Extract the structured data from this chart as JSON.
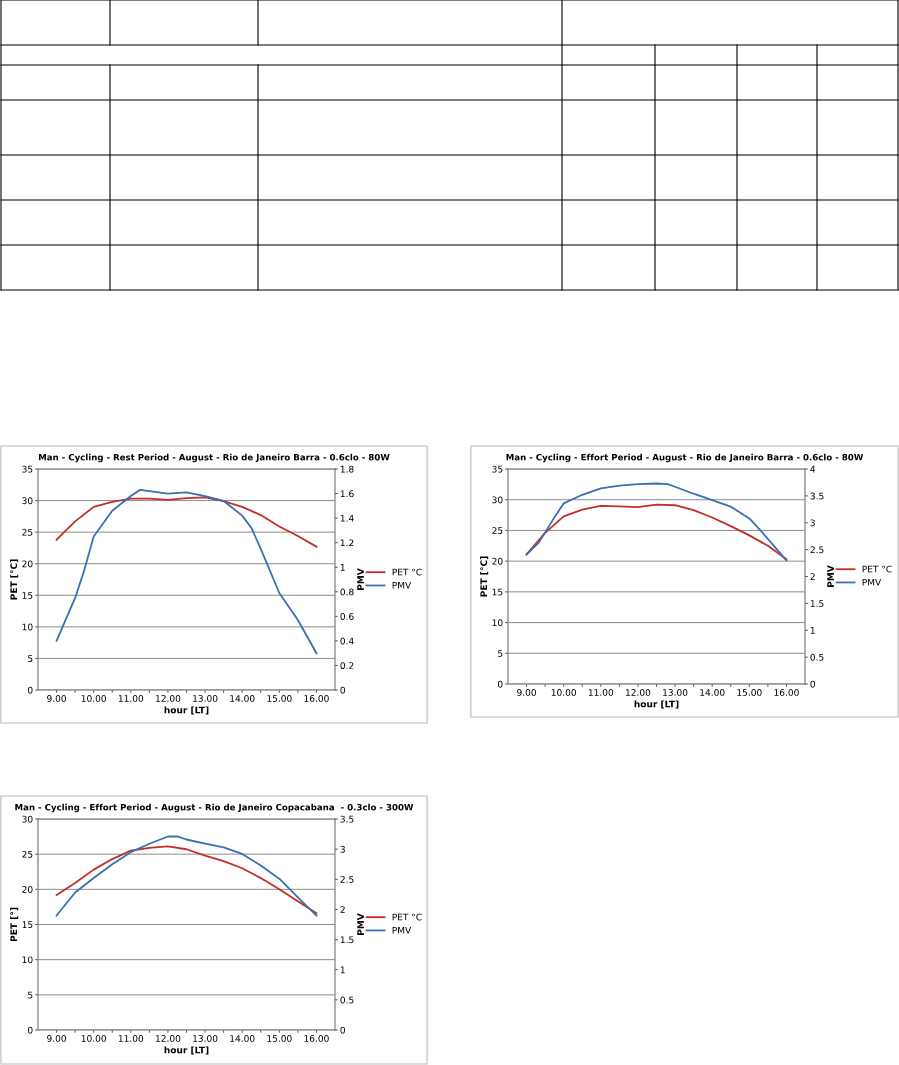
{
  "chart_data": [
    {
      "type": "line",
      "title": "Man - Cycling - Rest Period - August - Rio de Janeiro Barra - 0.6clo - 80W",
      "xlabel": "hour [LT]",
      "ylabel": "PET [°C]",
      "y2label": "PMV",
      "xlim": [
        8.5,
        16.5
      ],
      "xticks": [
        {
          "value": 9,
          "label": "9.00"
        },
        {
          "value": 9.5,
          "label": null
        },
        {
          "value": 10,
          "label": "10.00"
        },
        {
          "value": 10.5,
          "label": null
        },
        {
          "value": 11,
          "label": "11.00"
        },
        {
          "value": 11.5,
          "label": null
        },
        {
          "value": 12,
          "label": "12.00"
        },
        {
          "value": 12.5,
          "label": null
        },
        {
          "value": 13,
          "label": "13.00"
        },
        {
          "value": 13.5,
          "label": null
        },
        {
          "value": 14,
          "label": "14.00"
        },
        {
          "value": 14.5,
          "label": null
        },
        {
          "value": 15,
          "label": "15.00"
        },
        {
          "value": 15.5,
          "label": null
        },
        {
          "value": 16,
          "label": "16.00"
        }
      ],
      "ylim": [
        0,
        35
      ],
      "yticks": [
        0,
        5,
        10,
        15,
        20,
        25,
        30,
        35
      ],
      "y2lim": [
        0,
        1.8
      ],
      "y2ticks": [
        0,
        0.2,
        0.4,
        0.6,
        0.8,
        1,
        1.2,
        1.4,
        1.6,
        1.8
      ],
      "grid": "y",
      "legend": "right",
      "marker": "none",
      "line_style": "solid",
      "series": [
        {
          "name": "PET °C",
          "color": "#c0302b",
          "x": [
            9,
            9.5,
            10,
            10.5,
            11,
            11.5,
            12,
            12.5,
            13,
            13.5,
            14,
            14.5,
            15,
            15.5,
            16
          ],
          "values": [
            23.8,
            26.7,
            29.0,
            29.8,
            30.3,
            30.3,
            30.1,
            30.4,
            30.5,
            29.9,
            29.0,
            27.7,
            25.9,
            24.4,
            22.7
          ]
        },
        {
          "name": "PMV",
          "color": "#3a6fb5",
          "axis": "y2",
          "x": [
            9,
            9.5,
            9.75,
            10,
            10.5,
            11,
            11.25,
            11.5,
            12,
            12.5,
            13,
            13.5,
            14,
            14.25,
            14.5,
            15,
            15.5,
            16
          ],
          "values": [
            0.4,
            0.75,
            0.98,
            1.25,
            1.46,
            1.58,
            1.63,
            1.62,
            1.6,
            1.61,
            1.58,
            1.54,
            1.42,
            1.32,
            1.15,
            0.79,
            0.57,
            0.3
          ]
        }
      ]
    },
    {
      "type": "line",
      "title": "Man - Cycling - Effort Period - August - Rio de Janeiro Barra - 0.6clo - 80W",
      "xlabel": "hour [LT]",
      "ylabel": "PET [°C]",
      "y2label": "PMV",
      "xlim": [
        8.5,
        16.5
      ],
      "xticks": [
        {
          "value": 9,
          "label": "9.00"
        },
        {
          "value": 9.5,
          "label": null
        },
        {
          "value": 10,
          "label": "10.00"
        },
        {
          "value": 10.5,
          "label": null
        },
        {
          "value": 11,
          "label": "11.00"
        },
        {
          "value": 11.5,
          "label": null
        },
        {
          "value": 12,
          "label": "12.00"
        },
        {
          "value": 12.5,
          "label": null
        },
        {
          "value": 13,
          "label": "13.00"
        },
        {
          "value": 13.5,
          "label": null
        },
        {
          "value": 14,
          "label": "14.00"
        },
        {
          "value": 14.5,
          "label": null
        },
        {
          "value": 15,
          "label": "15.00"
        },
        {
          "value": 15.5,
          "label": null
        },
        {
          "value": 16,
          "label": "16.00"
        }
      ],
      "ylim": [
        0,
        35
      ],
      "yticks": [
        0,
        5,
        10,
        15,
        20,
        25,
        30,
        35
      ],
      "y2lim": [
        0,
        4
      ],
      "y2ticks": [
        0,
        0.5,
        1,
        1.5,
        2,
        2.5,
        3,
        3.5,
        4
      ],
      "grid": "y",
      "legend": "right",
      "marker": "none",
      "line_style": "solid",
      "series": [
        {
          "name": "PET °C",
          "color": "#c0302b",
          "x": [
            9,
            9.5,
            10,
            10.5,
            11,
            11.5,
            12,
            12.5,
            13,
            13.5,
            14,
            14.5,
            15,
            15.5,
            16
          ],
          "values": [
            21.1,
            24.6,
            27.3,
            28.4,
            29.0,
            28.9,
            28.8,
            29.2,
            29.1,
            28.3,
            27.1,
            25.7,
            24.2,
            22.5,
            20.3
          ]
        },
        {
          "name": "PMV",
          "color": "#3a6fb5",
          "axis": "y2",
          "x": [
            9,
            9.33,
            9.75,
            10,
            10.5,
            11,
            11.5,
            12,
            12.5,
            12.8,
            13,
            13.5,
            14,
            14.5,
            15,
            15.3,
            16
          ],
          "values": [
            2.41,
            2.63,
            3.1,
            3.36,
            3.52,
            3.64,
            3.69,
            3.72,
            3.73,
            3.72,
            3.67,
            3.54,
            3.42,
            3.3,
            3.08,
            2.86,
            2.3
          ]
        }
      ]
    },
    {
      "type": "line",
      "title": "Man - Cycling - Effort Period - August - Rio de Janeiro Copacabana  - 0.3clo - 300W",
      "xlabel": "hour [LT]",
      "ylabel": "PET [°]",
      "y2label": "PMV",
      "xlim": [
        8.5,
        16.5
      ],
      "xticks": [
        {
          "value": 9,
          "label": "9.00"
        },
        {
          "value": 9.5,
          "label": null
        },
        {
          "value": 10,
          "label": "10.00"
        },
        {
          "value": 10.5,
          "label": null
        },
        {
          "value": 11,
          "label": "11.00"
        },
        {
          "value": 11.5,
          "label": null
        },
        {
          "value": 12,
          "label": "12.00"
        },
        {
          "value": 12.5,
          "label": null
        },
        {
          "value": 13,
          "label": "13.00"
        },
        {
          "value": 13.5,
          "label": null
        },
        {
          "value": 14,
          "label": "14.00"
        },
        {
          "value": 14.5,
          "label": null
        },
        {
          "value": 15,
          "label": "15.00"
        },
        {
          "value": 15.5,
          "label": null
        },
        {
          "value": 16,
          "label": "16.00"
        }
      ],
      "ylim": [
        0,
        30
      ],
      "yticks": [
        0,
        5,
        10,
        15,
        20,
        25,
        30
      ],
      "y2lim": [
        0,
        3.5
      ],
      "y2ticks": [
        0,
        0.5,
        1,
        1.5,
        2,
        2.5,
        3,
        3.5
      ],
      "grid": "y",
      "legend": "right",
      "marker": "none",
      "line_style": "solid",
      "series": [
        {
          "name": "PET °C",
          "color": "#c0302b",
          "x": [
            9,
            9.5,
            10,
            10.5,
            11,
            11.5,
            12,
            12.5,
            13,
            13.5,
            14,
            14.5,
            15,
            15.5,
            16
          ],
          "values": [
            19.2,
            20.9,
            22.8,
            24.3,
            25.5,
            25.9,
            26.1,
            25.7,
            24.8,
            24.0,
            23.0,
            21.6,
            20.0,
            18.3,
            16.6
          ]
        },
        {
          "name": "PMV",
          "color": "#3a6fb5",
          "axis": "y2",
          "x": [
            9,
            9.5,
            10,
            10.5,
            11,
            11.5,
            12,
            12.25,
            12.5,
            13,
            13.5,
            14,
            14.5,
            15,
            15.5,
            16
          ],
          "values": [
            1.9,
            2.28,
            2.52,
            2.75,
            2.95,
            3.09,
            3.21,
            3.21,
            3.16,
            3.09,
            3.03,
            2.92,
            2.73,
            2.51,
            2.2,
            1.9
          ]
        }
      ]
    }
  ]
}
